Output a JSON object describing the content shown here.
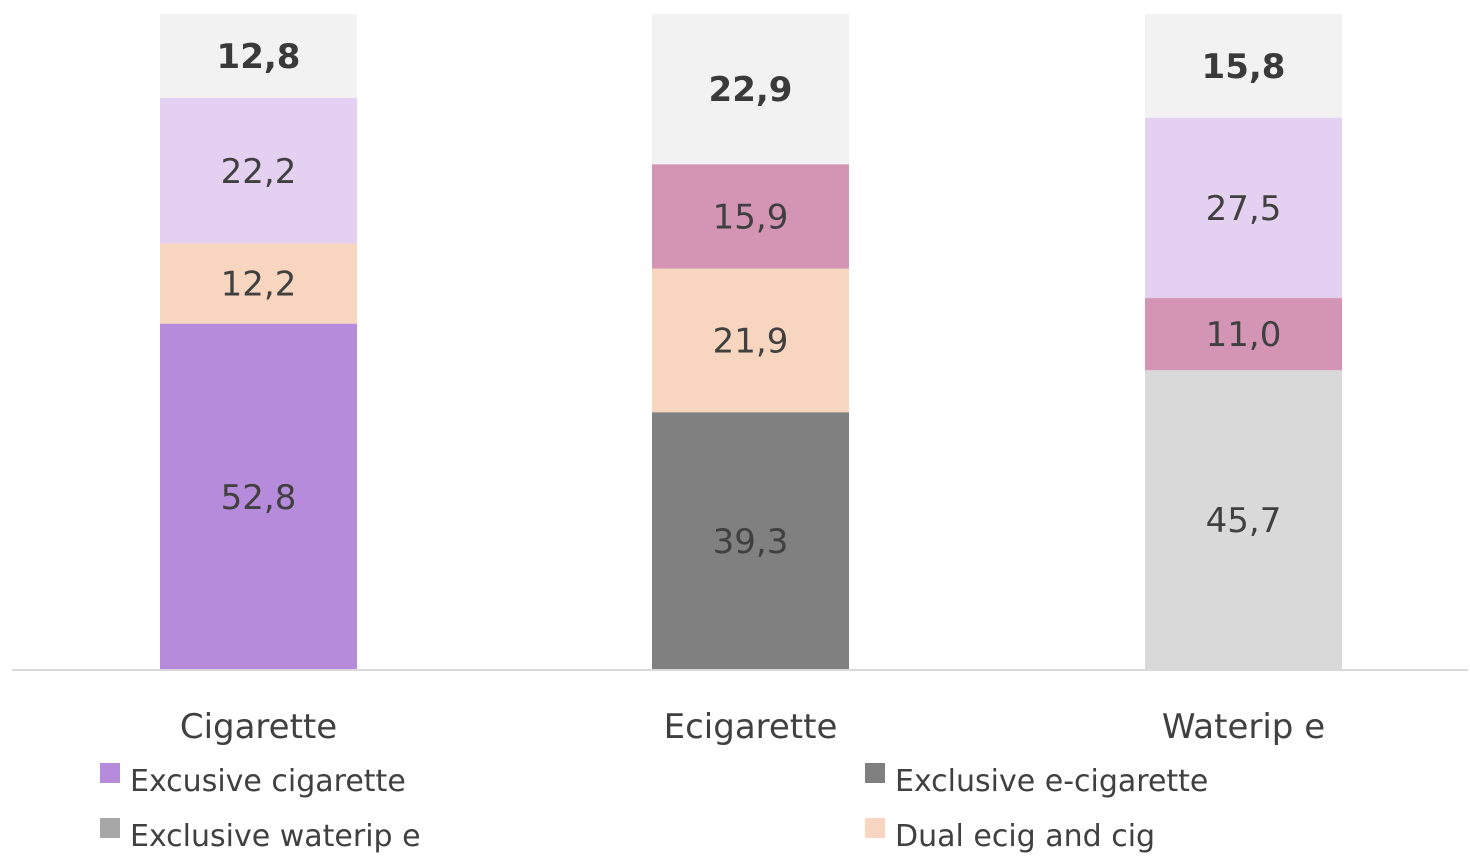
{
  "chart_data": {
    "type": "bar",
    "stacked": true,
    "categories": [
      "Cigarette",
      "Ecigarette",
      "Waterip e"
    ],
    "series": [
      {
        "name": "Excusive cigarette",
        "color": "#b78bdc",
        "values": [
          52.8,
          null,
          null
        ],
        "labels": [
          "52,8",
          "",
          ""
        ]
      },
      {
        "name": "Exclusive e-cigarette",
        "color": "#808080",
        "values": [
          null,
          39.3,
          null
        ],
        "labels": [
          "",
          "39,3",
          ""
        ]
      },
      {
        "name": "Exclusive waterip e",
        "color": "#d9d9d9",
        "values": [
          null,
          null,
          45.7
        ],
        "labels": [
          "",
          "",
          "45,7"
        ]
      },
      {
        "name": "Dual ecig and cig",
        "color": "#f8d5bf",
        "values": [
          12.2,
          21.9,
          null
        ],
        "labels": [
          "12,2",
          "21,9",
          ""
        ]
      },
      {
        "name": "",
        "color": "#d495b4",
        "values": [
          null,
          15.9,
          11.0
        ],
        "labels": [
          "",
          "15,9",
          "11,0"
        ]
      },
      {
        "name": "",
        "color": "#e4d0f0",
        "values": [
          22.2,
          null,
          27.5
        ],
        "labels": [
          "22,2",
          "",
          "27,5"
        ]
      },
      {
        "name": "",
        "color": "#f2f2f2",
        "values": [
          12.8,
          22.9,
          15.8
        ],
        "labels": [
          "12,8",
          "22,9",
          "15,8"
        ],
        "bold": true
      }
    ],
    "legend": {
      "position": "bottom",
      "items": [
        {
          "label": "Excusive cigarette",
          "color": "#b78bdc"
        },
        {
          "label": "Exclusive e-cigarette",
          "color": "#808080"
        },
        {
          "label": "Exclusive waterip e",
          "color": "#a6a6a6"
        },
        {
          "label": "Dual ecig and cig",
          "color": "#f8d5bf"
        }
      ]
    },
    "ylim": [
      0,
      100
    ],
    "grid": false,
    "title": "",
    "xlabel": "",
    "ylabel": ""
  }
}
